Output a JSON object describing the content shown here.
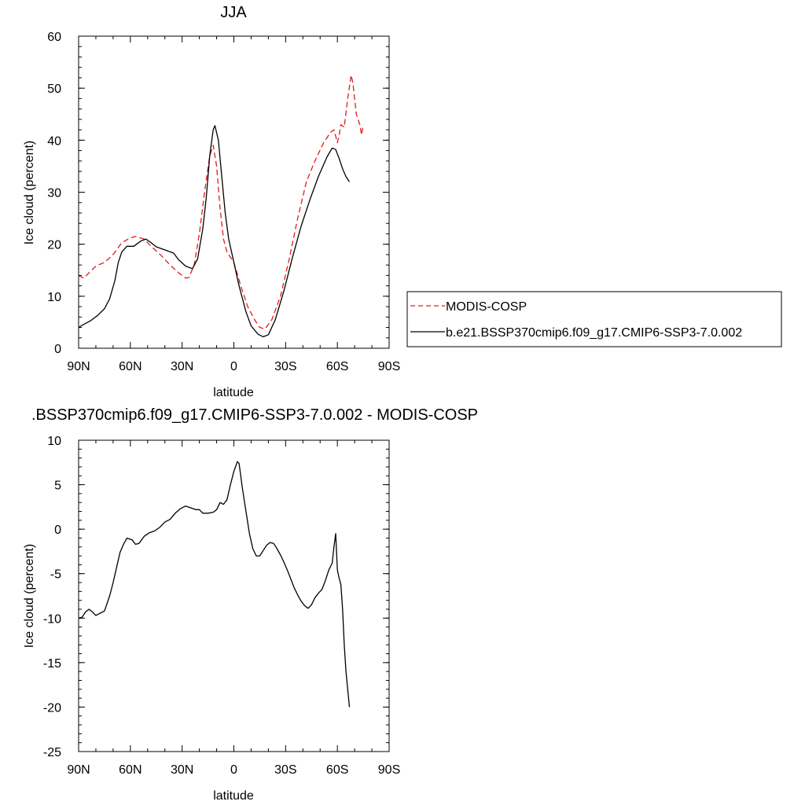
{
  "chart_data": [
    {
      "type": "line",
      "title": "JJA",
      "xlabel": "latitude",
      "ylabel": "Ice cloud (percent)",
      "xlim": [
        90,
        -90
      ],
      "ylim": [
        0,
        60
      ],
      "x_ticks": [
        90,
        60,
        30,
        0,
        -30,
        -60,
        -90
      ],
      "x_tick_labels": [
        "90N",
        "60N",
        "30N",
        "0",
        "30S",
        "60S",
        "90S"
      ],
      "y_ticks": [
        0,
        10,
        20,
        30,
        40,
        50,
        60
      ],
      "y_tick_labels": [
        "0",
        "10",
        "20",
        "30",
        "40",
        "50",
        "60"
      ],
      "legend_position": "right",
      "series": [
        {
          "name": "MODIS-COSP",
          "color": "#e41a1c",
          "dash": "dashed",
          "points": [
            [
              90,
              14
            ],
            [
              87,
              13.5
            ],
            [
              84,
              14.5
            ],
            [
              80,
              15.8
            ],
            [
              75,
              16.5
            ],
            [
              70,
              18
            ],
            [
              65,
              20.3
            ],
            [
              60,
              21.2
            ],
            [
              57,
              21.5
            ],
            [
              52,
              21
            ],
            [
              48,
              19.6
            ],
            [
              42,
              17.8
            ],
            [
              37,
              16
            ],
            [
              32,
              14.5
            ],
            [
              28,
              13.5
            ],
            [
              26,
              13.6
            ],
            [
              23,
              16
            ],
            [
              20,
              22
            ],
            [
              17,
              30
            ],
            [
              14,
              37
            ],
            [
              12,
              39
            ],
            [
              10,
              35
            ],
            [
              8,
              27
            ],
            [
              6,
              21
            ],
            [
              4,
              18.5
            ],
            [
              0,
              16.5
            ],
            [
              -4,
              12
            ],
            [
              -8,
              8
            ],
            [
              -12,
              5.5
            ],
            [
              -15,
              4
            ],
            [
              -18,
              3.7
            ],
            [
              -22,
              5.5
            ],
            [
              -27,
              10
            ],
            [
              -32,
              17
            ],
            [
              -37,
              25
            ],
            [
              -42,
              32
            ],
            [
              -47,
              36
            ],
            [
              -52,
              39.5
            ],
            [
              -56,
              41.5
            ],
            [
              -58,
              42
            ],
            [
              -60,
              39.5
            ],
            [
              -61,
              41
            ],
            [
              -62,
              43
            ],
            [
              -64,
              42.5
            ],
            [
              -66,
              48
            ],
            [
              -68,
              52.5
            ],
            [
              -69,
              51
            ],
            [
              -71,
              45
            ],
            [
              -73,
              43
            ],
            [
              -74,
              41
            ],
            [
              -75,
              43
            ]
          ]
        },
        {
          "name": "b.e21.BSSP370cmip6.f09_g17.CMIP6-SSP3-7.0.002",
          "color": "#000000",
          "dash": "solid",
          "points": [
            [
              90,
              4
            ],
            [
              87,
              4.6
            ],
            [
              83,
              5.3
            ],
            [
              79,
              6.3
            ],
            [
              75,
              7.6
            ],
            [
              72,
              9.5
            ],
            [
              69,
              13
            ],
            [
              67,
              16.5
            ],
            [
              65,
              18.5
            ],
            [
              62,
              19.6
            ],
            [
              58,
              19.6
            ],
            [
              54,
              20.6
            ],
            [
              51,
              21
            ],
            [
              48,
              20.3
            ],
            [
              45,
              19.5
            ],
            [
              40,
              18.9
            ],
            [
              35,
              18.3
            ],
            [
              32,
              17
            ],
            [
              28,
              15.8
            ],
            [
              24,
              15.3
            ],
            [
              21,
              17.2
            ],
            [
              18,
              23
            ],
            [
              16,
              29
            ],
            [
              14,
              37
            ],
            [
              12,
              42
            ],
            [
              11,
              42.8
            ],
            [
              9,
              40
            ],
            [
              7,
              33
            ],
            [
              5,
              26
            ],
            [
              3,
              21
            ],
            [
              0,
              16.5
            ],
            [
              -3,
              12
            ],
            [
              -7,
              7
            ],
            [
              -10,
              4.3
            ],
            [
              -14,
              2.7
            ],
            [
              -17,
              2.2
            ],
            [
              -20,
              2.6
            ],
            [
              -24,
              5.5
            ],
            [
              -29,
              11
            ],
            [
              -34,
              17.5
            ],
            [
              -39,
              23.5
            ],
            [
              -44,
              28.5
            ],
            [
              -49,
              33
            ],
            [
              -54,
              36.8
            ],
            [
              -57,
              38.5
            ],
            [
              -59,
              38.2
            ],
            [
              -61,
              36.5
            ],
            [
              -63,
              34.5
            ],
            [
              -65,
              33
            ],
            [
              -67,
              32
            ]
          ]
        }
      ]
    },
    {
      "type": "line",
      "title": ".BSSP370cmip6.f09_g17.CMIP6-SSP3-7.0.002 - MODIS-COSP",
      "xlabel": "latitude",
      "ylabel": "Ice cloud (percent)",
      "xlim": [
        90,
        -90
      ],
      "ylim": [
        -25,
        10
      ],
      "x_ticks": [
        90,
        60,
        30,
        0,
        -30,
        -60,
        -90
      ],
      "x_tick_labels": [
        "90N",
        "60N",
        "30N",
        "0",
        "30S",
        "60S",
        "90S"
      ],
      "y_ticks": [
        -25,
        -20,
        -15,
        -10,
        -5,
        0,
        5,
        10
      ],
      "y_tick_labels": [
        "-25",
        "-20",
        "-15",
        "-10",
        "-5",
        "0",
        "5",
        "10"
      ],
      "series": [
        {
          "name": "",
          "color": "#000000",
          "dash": "solid",
          "points": [
            [
              90,
              -10
            ],
            [
              88,
              -9.9
            ],
            [
              86,
              -9.3
            ],
            [
              84,
              -9
            ],
            [
              82,
              -9.3
            ],
            [
              80,
              -9.7
            ],
            [
              78,
              -9.5
            ],
            [
              75,
              -9.2
            ],
            [
              72,
              -7.5
            ],
            [
              70,
              -6
            ],
            [
              68,
              -4.3
            ],
            [
              66,
              -2.6
            ],
            [
              64,
              -1.7
            ],
            [
              62,
              -1
            ],
            [
              59,
              -1.2
            ],
            [
              57,
              -1.7
            ],
            [
              55,
              -1.6
            ],
            [
              52,
              -0.8
            ],
            [
              49,
              -0.4
            ],
            [
              46,
              -0.2
            ],
            [
              43,
              0.2
            ],
            [
              40,
              0.8
            ],
            [
              37,
              1.1
            ],
            [
              34,
              1.8
            ],
            [
              31,
              2.3
            ],
            [
              28,
              2.6
            ],
            [
              25,
              2.4
            ],
            [
              22,
              2.2
            ],
            [
              20,
              2.2
            ],
            [
              18,
              1.8
            ],
            [
              15,
              1.8
            ],
            [
              12,
              1.9
            ],
            [
              10,
              2.2
            ],
            [
              8,
              3
            ],
            [
              6,
              2.8
            ],
            [
              4,
              3.3
            ],
            [
              2,
              5
            ],
            [
              0,
              6.5
            ],
            [
              -2,
              7.6
            ],
            [
              -3,
              7.4
            ],
            [
              -5,
              4.5
            ],
            [
              -7,
              2
            ],
            [
              -9,
              -0.5
            ],
            [
              -11,
              -2.2
            ],
            [
              -13,
              -3
            ],
            [
              -15,
              -3
            ],
            [
              -17,
              -2.4
            ],
            [
              -19,
              -1.8
            ],
            [
              -21,
              -1.5
            ],
            [
              -23,
              -1.6
            ],
            [
              -25,
              -2.2
            ],
            [
              -27,
              -2.9
            ],
            [
              -29,
              -3.7
            ],
            [
              -31,
              -4.6
            ],
            [
              -33,
              -5.6
            ],
            [
              -35,
              -6.6
            ],
            [
              -37,
              -7.4
            ],
            [
              -39,
              -8.1
            ],
            [
              -41,
              -8.6
            ],
            [
              -43,
              -8.9
            ],
            [
              -45,
              -8.5
            ],
            [
              -47,
              -7.7
            ],
            [
              -49,
              -7.2
            ],
            [
              -51,
              -6.8
            ],
            [
              -53,
              -5.8
            ],
            [
              -55,
              -4.6
            ],
            [
              -57,
              -3.8
            ],
            [
              -58,
              -2
            ],
            [
              -59,
              -0.5
            ],
            [
              -60,
              -4.6
            ],
            [
              -61,
              -5.5
            ],
            [
              -62,
              -6.2
            ],
            [
              -63,
              -9
            ],
            [
              -64,
              -13
            ],
            [
              -65,
              -16
            ],
            [
              -66,
              -18
            ],
            [
              -67,
              -20
            ]
          ]
        }
      ]
    }
  ]
}
